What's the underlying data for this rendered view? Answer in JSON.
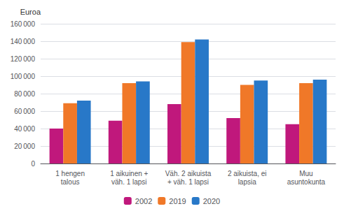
{
  "chart_data": {
    "type": "bar",
    "ylabel": "Euroa",
    "categories": [
      "1 hengen\ntalous",
      "1 aikuinen +\nväh. 1 lapsi",
      "Väh. 2 aikuista\n+ väh. 1 lapsi",
      "2 aikuista, ei\nlapsia",
      "Muu\nasuntokunta"
    ],
    "series": [
      {
        "name": "2002",
        "color": "#C0187C",
        "values": [
          40000,
          49000,
          68000,
          52000,
          45000
        ]
      },
      {
        "name": "2019",
        "color": "#F07828",
        "values": [
          69000,
          92000,
          139000,
          90000,
          92000
        ]
      },
      {
        "name": "2020",
        "color": "#2878C8",
        "values": [
          72000,
          94000,
          142000,
          95000,
          96000
        ]
      }
    ],
    "ylim": [
      0,
      160000
    ],
    "yticks": [
      0,
      {
        "value": 20000,
        "label": "20 000"
      },
      {
        "value": 40000,
        "label": "40 000"
      },
      {
        "value": 60000,
        "label": "60 000"
      },
      {
        "value": 80000,
        "label": "80 000"
      },
      {
        "value": 100000,
        "label": "100 000"
      },
      {
        "value": 120000,
        "label": "120 000"
      },
      {
        "value": 140000,
        "label": "140 000"
      },
      {
        "value": 160000,
        "label": "160 000"
      }
    ],
    "grid": true,
    "legend": "bottom"
  }
}
